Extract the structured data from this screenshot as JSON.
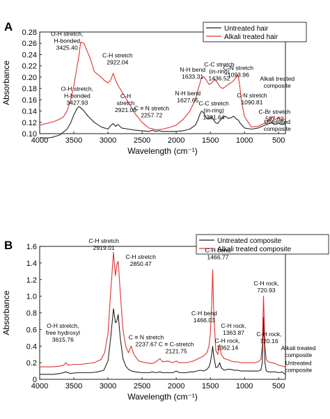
{
  "chart_data": [
    {
      "panel_label": "A",
      "type": "line",
      "xlabel": "Wavelength (cm⁻¹)",
      "ylabel": "Absorbance",
      "xlim": [
        4000,
        400
      ],
      "ylim": [
        0.1,
        0.28
      ],
      "x_ticks": [
        4000,
        3500,
        3000,
        2500,
        2000,
        1500,
        1000,
        500
      ],
      "y_ticks": [
        0.1,
        0.12,
        0.14,
        0.16,
        0.18,
        0.2,
        0.22,
        0.24,
        0.26,
        0.28
      ],
      "y_tick_labels": [
        "0.10",
        "0.12",
        "0.14",
        "0.16",
        "0.18",
        "0.20",
        "0.22",
        "0.24",
        "0.26",
        "0.28"
      ],
      "legend_position": "top-right",
      "series": [
        {
          "name": "Untreated hair",
          "color": "#222222",
          "x": [
            4000,
            3900,
            3800,
            3700,
            3600,
            3550,
            3500,
            3450,
            3428,
            3400,
            3350,
            3300,
            3200,
            3100,
            3000,
            2960,
            2921,
            2890,
            2850,
            2800,
            2700,
            2600,
            2500,
            2400,
            2350,
            2300,
            2258,
            2200,
            2100,
            2000,
            1900,
            1800,
            1720,
            1680,
            1650,
            1628,
            1600,
            1560,
            1520,
            1480,
            1450,
            1420,
            1392,
            1360,
            1320,
            1280,
            1240,
            1200,
            1160,
            1120,
            1091,
            1060,
            1000,
            900,
            800,
            700,
            650,
            598,
            560,
            500,
            450,
            400
          ],
          "y": [
            0.093,
            0.092,
            0.094,
            0.098,
            0.108,
            0.118,
            0.133,
            0.145,
            0.148,
            0.146,
            0.14,
            0.132,
            0.12,
            0.112,
            0.108,
            0.114,
            0.118,
            0.113,
            0.116,
            0.11,
            0.108,
            0.106,
            0.105,
            0.104,
            0.106,
            0.104,
            0.105,
            0.104,
            0.104,
            0.104,
            0.105,
            0.108,
            0.115,
            0.125,
            0.135,
            0.14,
            0.137,
            0.128,
            0.126,
            0.13,
            0.124,
            0.119,
            0.118,
            0.123,
            0.128,
            0.131,
            0.127,
            0.128,
            0.131,
            0.126,
            0.124,
            0.118,
            0.11,
            0.108,
            0.11,
            0.115,
            0.117,
            0.12,
            0.116,
            0.118,
            0.116,
            0.117
          ]
        },
        {
          "name": "Alkali treated hair",
          "color": "#e03030",
          "x": [
            4000,
            3900,
            3800,
            3700,
            3650,
            3600,
            3550,
            3500,
            3450,
            3425,
            3400,
            3350,
            3300,
            3250,
            3200,
            3100,
            3050,
            3000,
            2960,
            2922,
            2890,
            2850,
            2800,
            2750,
            2700,
            2600,
            2500,
            2400,
            2300,
            2257,
            2200,
            2100,
            2000,
            1900,
            1800,
            1720,
            1680,
            1650,
            1633,
            1600,
            1560,
            1520,
            1480,
            1437,
            1400,
            1360,
            1320,
            1280,
            1240,
            1200,
            1160,
            1120,
            1094,
            1070,
            1040,
            1000,
            900,
            800,
            700,
            650,
            598,
            560,
            500,
            450,
            400
          ],
          "y": [
            0.115,
            0.118,
            0.121,
            0.126,
            0.13,
            0.14,
            0.158,
            0.185,
            0.22,
            0.238,
            0.262,
            0.26,
            0.245,
            0.23,
            0.21,
            0.2,
            0.194,
            0.19,
            0.195,
            0.207,
            0.195,
            0.185,
            0.175,
            0.165,
            0.155,
            0.135,
            0.12,
            0.11,
            0.107,
            0.107,
            0.108,
            0.111,
            0.115,
            0.125,
            0.14,
            0.16,
            0.178,
            0.19,
            0.198,
            0.201,
            0.195,
            0.187,
            0.19,
            0.196,
            0.191,
            0.183,
            0.18,
            0.183,
            0.187,
            0.19,
            0.194,
            0.2,
            0.204,
            0.185,
            0.155,
            0.13,
            0.112,
            0.113,
            0.119,
            0.123,
            0.13,
            0.125,
            0.128,
            0.125,
            0.126
          ]
        }
      ],
      "annotations": [
        {
          "lines": [
            "O-H stretch,",
            "H-bonded",
            "3425.40"
          ],
          "x": 3600,
          "y": 0.273
        },
        {
          "lines": [
            "C-H stretch",
            "2922.04"
          ],
          "x": 2860,
          "y": 0.235
        },
        {
          "lines": [
            "N-H bend",
            "1633.31"
          ],
          "x": 1760,
          "y": 0.21
        },
        {
          "lines": [
            "C-C stretch",
            "(in-ring)",
            "1436.52"
          ],
          "x": 1370,
          "y": 0.219
        },
        {
          "lines": [
            "C-N stretch",
            "1093.96"
          ],
          "x": 1090,
          "y": 0.213
        },
        {
          "lines": [
            "Alkali treated",
            "composite"
          ],
          "x": 520,
          "y": 0.194
        },
        {
          "lines": [
            "O-H stretch,",
            "H-bonded",
            "3427.93"
          ],
          "x": 3450,
          "y": 0.176
        },
        {
          "lines": [
            "C-H",
            "stretch",
            "2921.00"
          ],
          "x": 2740,
          "y": 0.163
        },
        {
          "lines": [
            "C ≡ N stretch",
            "2257.72"
          ],
          "x": 2360,
          "y": 0.141
        },
        {
          "lines": [
            "N-H bend",
            "1627.65"
          ],
          "x": 1830,
          "y": 0.168
        },
        {
          "lines": [
            "C-C stretch",
            "(in-ring)",
            "1391.64"
          ],
          "x": 1450,
          "y": 0.15
        },
        {
          "lines": [
            "C-N stretch",
            "1090.81"
          ],
          "x": 890,
          "y": 0.164
        },
        {
          "lines": [
            "C-Br stretch",
            "597.62"
          ],
          "x": 560,
          "y": 0.135
        },
        {
          "lines": [
            "Untreated",
            "composite"
          ],
          "x": 520,
          "y": 0.117
        }
      ]
    },
    {
      "panel_label": "B",
      "type": "line",
      "xlabel": "Wavelength (cm⁻¹)",
      "ylabel": "Absorbance",
      "xlim": [
        4000,
        400
      ],
      "ylim": [
        0,
        1.6
      ],
      "x_ticks": [
        4000,
        3500,
        3000,
        2500,
        2000,
        1500,
        1000,
        500
      ],
      "y_ticks": [
        0,
        0.2,
        0.4,
        0.6,
        0.8,
        1.0,
        1.2,
        1.4,
        1.6
      ],
      "y_tick_labels": [
        "0",
        "0.2",
        "0.4",
        "0.6",
        "0.8",
        "1.0",
        "1.2",
        "1.4",
        "1.6"
      ],
      "legend_position": "top-right",
      "series": [
        {
          "name": "Untreated composite",
          "color": "#222222",
          "x": [
            4000,
            3900,
            3800,
            3700,
            3616,
            3550,
            3450,
            3350,
            3250,
            3150,
            3060,
            3000,
            2960,
            2919,
            2890,
            2870,
            2850,
            2820,
            2780,
            2740,
            2700,
            2650,
            2600,
            2500,
            2400,
            2350,
            2300,
            2238,
            2200,
            2122,
            2050,
            2000,
            1950,
            1900,
            1850,
            1800,
            1750,
            1700,
            1650,
            1600,
            1550,
            1520,
            1500,
            1480,
            1466,
            1450,
            1420,
            1390,
            1364,
            1340,
            1300,
            1250,
            1200,
            1150,
            1100,
            1050,
            1000,
            950,
            900,
            850,
            800,
            760,
            740,
            720,
            700,
            680,
            650,
            600,
            550,
            500,
            450,
            400
          ],
          "y": [
            0.06,
            0.06,
            0.06,
            0.07,
            0.09,
            0.07,
            0.08,
            0.08,
            0.08,
            0.09,
            0.11,
            0.22,
            0.5,
            0.85,
            0.68,
            0.7,
            0.78,
            0.5,
            0.25,
            0.16,
            0.12,
            0.1,
            0.09,
            0.08,
            0.08,
            0.09,
            0.08,
            0.09,
            0.08,
            0.08,
            0.08,
            0.1,
            0.08,
            0.08,
            0.08,
            0.09,
            0.09,
            0.1,
            0.11,
            0.1,
            0.12,
            0.15,
            0.2,
            0.3,
            0.4,
            0.28,
            0.14,
            0.15,
            0.2,
            0.14,
            0.11,
            0.12,
            0.12,
            0.11,
            0.11,
            0.1,
            0.1,
            0.1,
            0.1,
            0.1,
            0.1,
            0.11,
            0.2,
            0.75,
            0.2,
            0.1,
            0.09,
            0.09,
            0.09,
            0.08,
            0.09,
            0.06
          ]
        },
        {
          "name": "Alkali treated composite",
          "color": "#e03030",
          "x": [
            4000,
            3900,
            3800,
            3700,
            3650,
            3616,
            3580,
            3500,
            3400,
            3300,
            3200,
            3100,
            3050,
            3000,
            2960,
            2919,
            2890,
            2870,
            2850,
            2820,
            2780,
            2740,
            2700,
            2660,
            2620,
            2550,
            2450,
            2350,
            2300,
            2238,
            2200,
            2122,
            2050,
            2000,
            1950,
            1900,
            1850,
            1800,
            1750,
            1700,
            1650,
            1600,
            1550,
            1520,
            1500,
            1480,
            1466,
            1450,
            1420,
            1390,
            1364,
            1340,
            1300,
            1250,
            1200,
            1150,
            1100,
            1050,
            1000,
            950,
            900,
            850,
            800,
            760,
            740,
            721,
            700,
            680,
            650,
            600,
            550,
            500,
            450,
            400
          ],
          "y": [
            0.15,
            0.15,
            0.15,
            0.16,
            0.17,
            0.2,
            0.17,
            0.18,
            0.18,
            0.19,
            0.2,
            0.24,
            0.32,
            0.55,
            1.05,
            1.53,
            1.25,
            1.38,
            1.42,
            1.05,
            0.6,
            0.4,
            0.32,
            0.4,
            0.3,
            0.22,
            0.2,
            0.19,
            0.21,
            0.25,
            0.21,
            0.22,
            0.2,
            0.22,
            0.2,
            0.2,
            0.2,
            0.21,
            0.22,
            0.24,
            0.26,
            0.28,
            0.32,
            0.4,
            0.55,
            0.9,
            1.32,
            0.8,
            0.35,
            0.3,
            0.42,
            0.3,
            0.25,
            0.24,
            0.22,
            0.21,
            0.21,
            0.2,
            0.2,
            0.2,
            0.2,
            0.2,
            0.21,
            0.24,
            0.4,
            1.0,
            0.4,
            0.24,
            0.21,
            0.2,
            0.19,
            0.17,
            0.16,
            0.15
          ]
        }
      ],
      "annotations": [
        {
          "lines": [
            "C-H stretch",
            "2919.01"
          ],
          "x": 3060,
          "y": 1.64
        },
        {
          "lines": [
            "C-H stretch",
            "2850.47"
          ],
          "x": 2520,
          "y": 1.45
        },
        {
          "lines": [
            "C-H bend",
            "1466.77"
          ],
          "x": 1390,
          "y": 1.53
        },
        {
          "lines": [
            "C-H rock,",
            "720.93"
          ],
          "x": 680,
          "y": 1.13
        },
        {
          "lines": [
            "C-H bend",
            "1466.03"
          ],
          "x": 1590,
          "y": 0.77
        },
        {
          "lines": [
            "C-H rock,",
            "1363.87"
          ],
          "x": 1160,
          "y": 0.62
        },
        {
          "lines": [
            "C-H rock,",
            "720.16"
          ],
          "x": 640,
          "y": 0.52
        },
        {
          "lines": [
            "C-H rock,",
            "1362.14"
          ],
          "x": 1250,
          "y": 0.44
        },
        {
          "lines": [
            "O-H stretch,",
            "free hydroxyl",
            "3615.76"
          ],
          "x": 3660,
          "y": 0.62
        },
        {
          "lines": [
            "C ≡ N stretch",
            "2237.67"
          ],
          "x": 2440,
          "y": 0.48
        },
        {
          "lines": [
            "C ≡ C-stretch",
            "2121.75"
          ],
          "x": 2000,
          "y": 0.4
        },
        {
          "lines": [
            "Alkali treated",
            "composite"
          ],
          "x": 210,
          "y": 0.35
        },
        {
          "lines": [
            "Untreated",
            "composite"
          ],
          "x": 210,
          "y": 0.17
        }
      ]
    }
  ]
}
